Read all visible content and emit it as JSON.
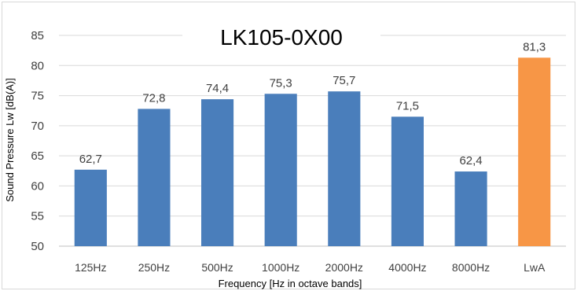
{
  "chart_data": {
    "type": "bar",
    "title": "LK105-0X00",
    "xlabel": "Frequency [Hz in octave bands]",
    "ylabel": "Sound Pressure Lw [dB(A)]",
    "categories": [
      "125Hz",
      "250Hz",
      "500Hz",
      "1000Hz",
      "2000Hz",
      "4000Hz",
      "8000Hz",
      "LwA"
    ],
    "values": [
      62.7,
      72.8,
      74.4,
      75.3,
      75.7,
      71.5,
      62.4,
      81.3
    ],
    "value_labels": [
      "62,7",
      "72,8",
      "74,4",
      "75,3",
      "75,7",
      "71,5",
      "62,4",
      "81,3"
    ],
    "bar_colors": [
      "#4a7ebb",
      "#4a7ebb",
      "#4a7ebb",
      "#4a7ebb",
      "#4a7ebb",
      "#4a7ebb",
      "#4a7ebb",
      "#f79646"
    ],
    "ylim": [
      50,
      85
    ],
    "yticks": [
      50,
      55,
      60,
      65,
      70,
      75,
      80,
      85
    ],
    "grid": true,
    "legend": "none"
  }
}
